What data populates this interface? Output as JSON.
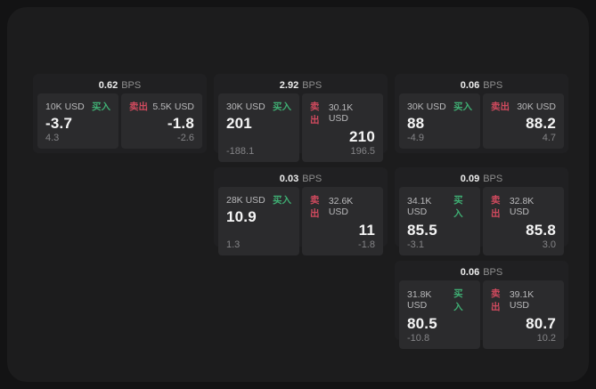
{
  "labels": {
    "buy": "买入",
    "sell": "卖出",
    "bps": "BPS"
  },
  "colors": {
    "page_background": "#131314",
    "panel_background": "#1c1c1d",
    "card_background": "#202022",
    "quote_background": "#2b2b2d",
    "buy_accent": "#3fae73",
    "sell_accent": "#d04a5e"
  },
  "cards": [
    {
      "bps": "0.62",
      "buy": {
        "notional": "10K USD",
        "price": "-3.7",
        "delta": "4.3"
      },
      "sell": {
        "notional": "5.5K USD",
        "price": "-1.8",
        "delta": "-2.6"
      }
    },
    {
      "bps": "2.92",
      "buy": {
        "notional": "30K USD",
        "price": "201",
        "delta": "-188.1"
      },
      "sell": {
        "notional": "30.1K USD",
        "price": "210",
        "delta": "196.5"
      }
    },
    {
      "bps": "0.06",
      "buy": {
        "notional": "30K USD",
        "price": "88",
        "delta": "-4.9"
      },
      "sell": {
        "notional": "30K USD",
        "price": "88.2",
        "delta": "4.7"
      }
    },
    {
      "bps": "0.03",
      "buy": {
        "notional": "28K USD",
        "price": "10.9",
        "delta": "1.3"
      },
      "sell": {
        "notional": "32.6K USD",
        "price": "11",
        "delta": "-1.8"
      }
    },
    {
      "bps": "0.09",
      "buy": {
        "notional": "34.1K USD",
        "price": "85.5",
        "delta": "-3.1"
      },
      "sell": {
        "notional": "32.8K USD",
        "price": "85.8",
        "delta": "3.0"
      }
    },
    {
      "bps": "0.06",
      "buy": {
        "notional": "31.8K USD",
        "price": "80.5",
        "delta": "-10.8"
      },
      "sell": {
        "notional": "39.1K USD",
        "price": "80.7",
        "delta": "10.2"
      }
    }
  ]
}
